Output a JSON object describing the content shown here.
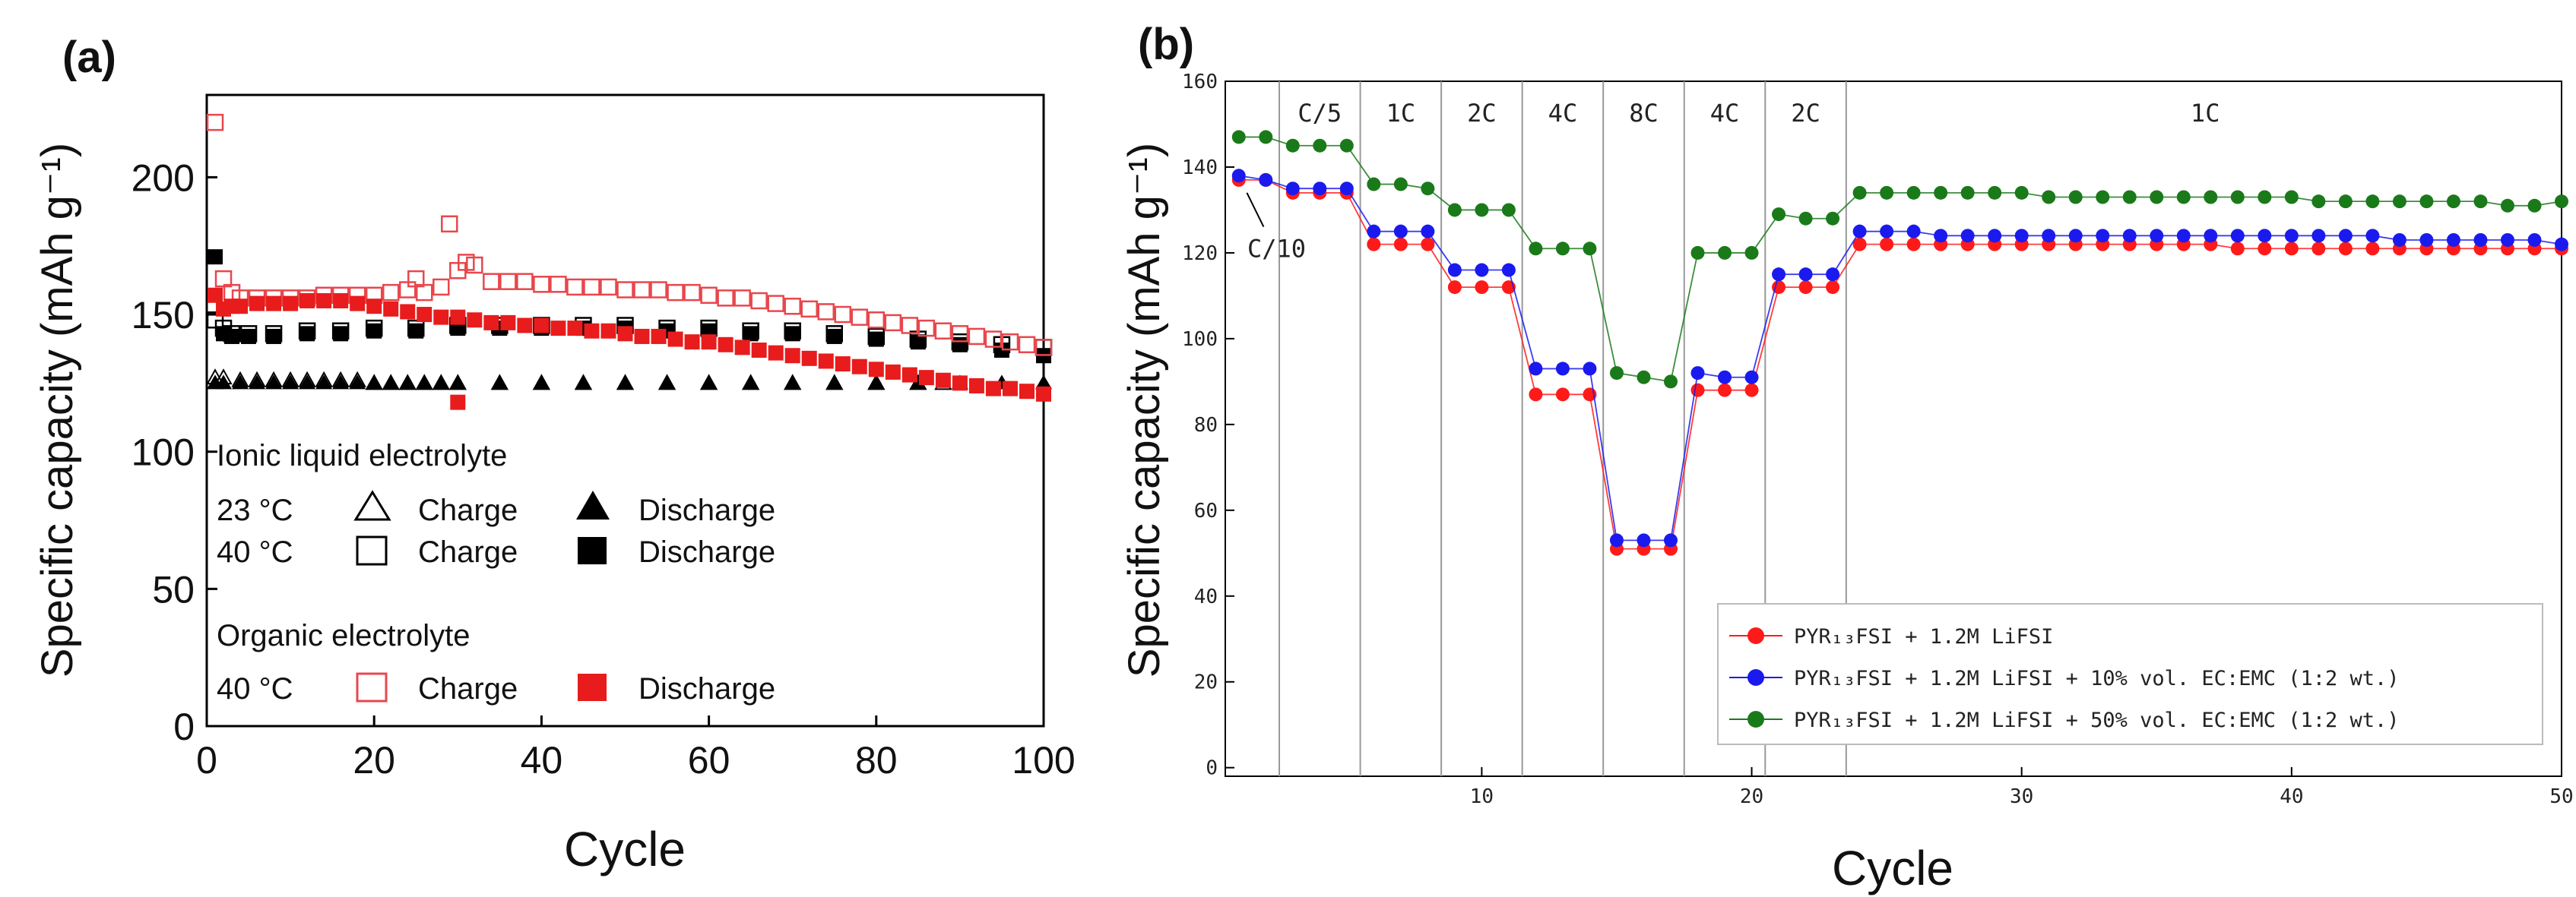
{
  "panel_a_label": "(a)",
  "panel_b_label": "(b)",
  "chart_data": [
    {
      "type": "scatter",
      "panel": "(a)",
      "xlabel": "Cycle",
      "ylabel": "Specific capacity (mAh g⁻¹)",
      "xlim": [
        0,
        100
      ],
      "ylim": [
        0,
        230
      ],
      "xticks": [
        0,
        20,
        40,
        60,
        80,
        100
      ],
      "yticks": [
        0,
        50,
        100,
        150,
        200
      ],
      "legend_position": "bottom-left",
      "legend": {
        "group1_title": "Ionic liquid electrolyte",
        "row1_temp": "23 °C",
        "row2_temp": "40 °C",
        "group2_title": "Organic electrolyte",
        "row3_temp": "40 °C",
        "charge_label": "Charge",
        "discharge_label": "Discharge"
      },
      "series": [
        {
          "key": "il23_charge",
          "marker": "open-triangle",
          "color": "#000000",
          "x": [
            1,
            2,
            4,
            6,
            8,
            10,
            12,
            14,
            16,
            18,
            20,
            22,
            24,
            26,
            28,
            30,
            35,
            40,
            45,
            50,
            55,
            60,
            65,
            70,
            75,
            80,
            85,
            88
          ],
          "y": [
            127,
            127,
            126,
            126,
            126,
            126,
            126,
            126,
            126,
            126,
            125,
            125,
            125,
            125,
            125,
            125,
            125,
            125,
            125,
            125,
            125,
            125,
            125,
            125,
            125,
            125,
            125,
            125
          ]
        },
        {
          "key": "il23_discharge",
          "marker": "filled-triangle",
          "color": "#000000",
          "x": [
            1,
            2,
            4,
            6,
            8,
            10,
            12,
            14,
            16,
            18,
            20,
            22,
            24,
            26,
            28,
            30,
            35,
            40,
            45,
            50,
            55,
            60,
            65,
            70,
            75,
            80,
            85,
            90,
            95,
            100
          ],
          "y": [
            125,
            125,
            125,
            125,
            125,
            125,
            125,
            125,
            125,
            125,
            125,
            125,
            125,
            125,
            125,
            125,
            125,
            125,
            125,
            125,
            125,
            125,
            125,
            125,
            125,
            125,
            125,
            125,
            125,
            125
          ]
        },
        {
          "key": "il40_charge",
          "marker": "open-square",
          "color": "#000000",
          "x": [
            1,
            2,
            3,
            5,
            8,
            12,
            16,
            20,
            25,
            30,
            35,
            40,
            45,
            50,
            55,
            60,
            65,
            70,
            75,
            80,
            85,
            90,
            95,
            100
          ],
          "y": [
            148,
            145,
            143,
            143,
            143,
            144,
            144,
            145,
            145,
            146,
            146,
            146,
            146,
            146,
            145,
            145,
            144,
            144,
            143,
            142,
            141,
            140,
            139,
            138
          ]
        },
        {
          "key": "il40_discharge",
          "marker": "filled-square",
          "color": "#000000",
          "x": [
            1,
            2,
            3,
            5,
            8,
            12,
            16,
            20,
            25,
            30,
            35,
            40,
            45,
            50,
            55,
            60,
            65,
            70,
            75,
            80,
            85,
            90,
            95,
            100
          ],
          "y": [
            171,
            143,
            142,
            142,
            142,
            143,
            143,
            144,
            144,
            145,
            145,
            145,
            145,
            145,
            144,
            144,
            143,
            143,
            142,
            141,
            140,
            139,
            137,
            135
          ]
        },
        {
          "key": "org40_charge",
          "marker": "open-square",
          "color": "#e8474d",
          "x": [
            1,
            2,
            3,
            4,
            6,
            8,
            10,
            12,
            14,
            16,
            18,
            20,
            22,
            24,
            25,
            26,
            28,
            29,
            30,
            31,
            32,
            34,
            36,
            38,
            40,
            42,
            44,
            46,
            48,
            50,
            52,
            54,
            56,
            58,
            60,
            62,
            64,
            66,
            68,
            70,
            72,
            74,
            76,
            78,
            80,
            82,
            84,
            86,
            88,
            90,
            92,
            94,
            96,
            98,
            100
          ],
          "y": [
            220,
            163,
            158,
            156,
            156,
            156,
            156,
            156,
            157,
            157,
            157,
            157,
            158,
            159,
            163,
            158,
            160,
            183,
            166,
            169,
            168,
            162,
            162,
            162,
            161,
            161,
            160,
            160,
            160,
            159,
            159,
            159,
            158,
            158,
            157,
            156,
            156,
            155,
            154,
            153,
            152,
            151,
            150,
            149,
            148,
            147,
            146,
            145,
            144,
            143,
            142,
            141,
            140,
            139,
            138
          ]
        },
        {
          "key": "org40_discharge",
          "marker": "filled-square",
          "color": "#e81c1c",
          "x": [
            1,
            2,
            3,
            4,
            6,
            8,
            10,
            12,
            14,
            16,
            18,
            20,
            22,
            24,
            26,
            28,
            30,
            32,
            34,
            36,
            38,
            40,
            42,
            44,
            46,
            48,
            50,
            52,
            54,
            56,
            58,
            60,
            62,
            64,
            66,
            68,
            70,
            72,
            74,
            76,
            78,
            80,
            82,
            84,
            86,
            88,
            90,
            92,
            94,
            96,
            98,
            100
          ],
          "y": [
            157,
            152,
            153,
            153,
            154,
            154,
            154,
            155,
            155,
            155,
            154,
            153,
            152,
            151,
            150,
            149,
            149,
            148,
            147,
            147,
            146,
            146,
            145,
            145,
            144,
            144,
            143,
            142,
            142,
            141,
            140,
            140,
            139,
            138,
            137,
            136,
            135,
            134,
            133,
            132,
            131,
            130,
            129,
            128,
            127,
            126,
            125,
            124,
            123,
            123,
            122,
            121
          ]
        },
        {
          "key": "org40_outlier",
          "marker": "filled-square",
          "color": "#e81c1c",
          "x": [
            30
          ],
          "y": [
            118
          ]
        }
      ]
    },
    {
      "type": "line",
      "panel": "(b)",
      "xlabel": "Cycle",
      "ylabel": "Specific capacity (mAh g⁻¹)",
      "xlim": [
        0.5,
        50
      ],
      "ylim": [
        -2,
        160
      ],
      "xticks": [
        10,
        20,
        30,
        40,
        50
      ],
      "yticks": [
        0,
        20,
        40,
        60,
        80,
        100,
        120,
        140,
        160
      ],
      "legend_position": "bottom-right",
      "rate_boundaries": [
        2.5,
        5.5,
        8.5,
        11.5,
        14.5,
        17.5,
        20.5,
        23.5
      ],
      "rate_labels": [
        {
          "label": "C/5",
          "x": 4
        },
        {
          "label": "1C",
          "x": 7
        },
        {
          "label": "2C",
          "x": 10
        },
        {
          "label": "4C",
          "x": 13
        },
        {
          "label": "8C",
          "x": 16
        },
        {
          "label": "4C",
          "x": 19
        },
        {
          "label": "2C",
          "x": 22
        },
        {
          "label": "1C",
          "x": 36.8
        }
      ],
      "annotation": {
        "label": "C/10",
        "point_x": 1.3,
        "point_y": 134,
        "text_x": 2.4,
        "text_y": 119
      },
      "categories_x": [
        1,
        2,
        3,
        4,
        5,
        6,
        7,
        8,
        9,
        10,
        11,
        12,
        13,
        14,
        15,
        16,
        17,
        18,
        19,
        20,
        21,
        22,
        23,
        24,
        25,
        26,
        27,
        28,
        29,
        30,
        31,
        32,
        33,
        34,
        35,
        36,
        37,
        38,
        39,
        40,
        41,
        42,
        43,
        44,
        45,
        46,
        47,
        48,
        49,
        50
      ],
      "series": [
        {
          "name": "PYR₁₃FSI + 1.2M LiFSI",
          "color": "#ff1a1a",
          "values": [
            137,
            137,
            134,
            134,
            134,
            122,
            122,
            122,
            112,
            112,
            112,
            87,
            87,
            87,
            51,
            51,
            51,
            88,
            88,
            88,
            112,
            112,
            112,
            122,
            122,
            122,
            122,
            122,
            122,
            122,
            122,
            122,
            122,
            122,
            122,
            122,
            122,
            121,
            121,
            121,
            121,
            121,
            121,
            121,
            121,
            121,
            121,
            121,
            121,
            121
          ]
        },
        {
          "name": "PYR₁₃FSI + 1.2M LiFSI + 10% vol. EC:EMC (1:2 wt.)",
          "color": "#1a1aee",
          "values": [
            138,
            137,
            135,
            135,
            135,
            125,
            125,
            125,
            116,
            116,
            116,
            93,
            93,
            93,
            53,
            53,
            53,
            92,
            91,
            91,
            115,
            115,
            115,
            125,
            125,
            125,
            124,
            124,
            124,
            124,
            124,
            124,
            124,
            124,
            124,
            124,
            124,
            124,
            124,
            124,
            124,
            124,
            124,
            123,
            123,
            123,
            123,
            123,
            123,
            122
          ]
        },
        {
          "name": "PYR₁₃FSI + 1.2M LiFSI + 50% vol. EC:EMC (1:2 wt.)",
          "color": "#1a7a1a",
          "values": [
            147,
            147,
            145,
            145,
            145,
            136,
            136,
            135,
            130,
            130,
            130,
            121,
            121,
            121,
            92,
            91,
            90,
            120,
            120,
            120,
            129,
            128,
            128,
            134,
            134,
            134,
            134,
            134,
            134,
            134,
            133,
            133,
            133,
            133,
            133,
            133,
            133,
            133,
            133,
            133,
            132,
            132,
            132,
            132,
            132,
            132,
            132,
            131,
            131,
            132
          ]
        }
      ]
    }
  ]
}
